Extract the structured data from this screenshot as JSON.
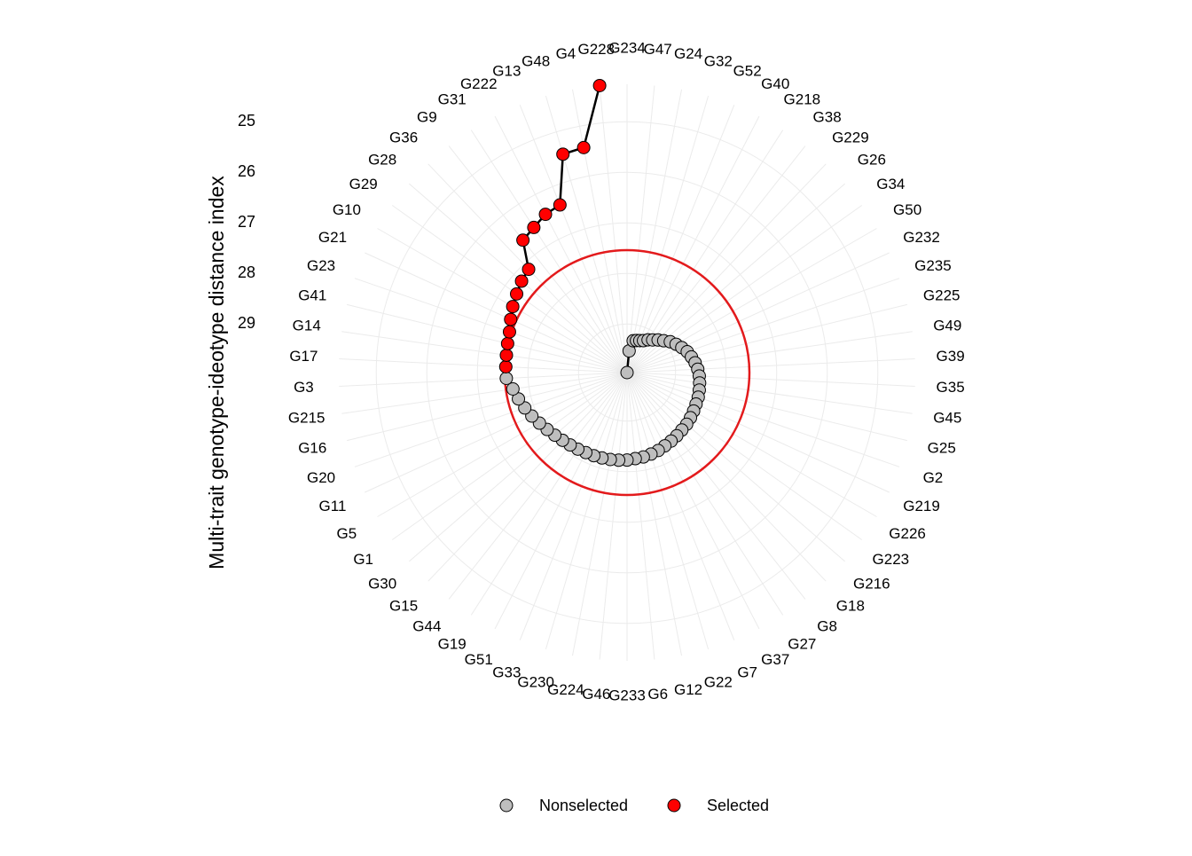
{
  "chart_data": {
    "type": "radar",
    "y_label": "Multi-trait genotype-ideotype distance index",
    "categories": [
      "G234",
      "G47",
      "G24",
      "G32",
      "G52",
      "G40",
      "G218",
      "G38",
      "G229",
      "G26",
      "G34",
      "G50",
      "G232",
      "G235",
      "G225",
      "G49",
      "G39",
      "G35",
      "G45",
      "G25",
      "G2",
      "G219",
      "G226",
      "G223",
      "G216",
      "G18",
      "G8",
      "G27",
      "G37",
      "G7",
      "G22",
      "G12",
      "G6",
      "G233",
      "G46",
      "G224",
      "G230",
      "G33",
      "G51",
      "G19",
      "G44",
      "G15",
      "G30",
      "G1",
      "G5",
      "G11",
      "G20",
      "G16",
      "G215",
      "G3",
      "G17",
      "G14",
      "G41",
      "G23",
      "G21",
      "G10",
      "G29",
      "G28",
      "G36",
      "G9",
      "G31",
      "G222",
      "G13",
      "G48",
      "G4",
      "G228"
    ],
    "series": [
      {
        "name": "Nonselected",
        "color": "#bebebe",
        "values": [
          29.96,
          29.53,
          29.32,
          29.3,
          29.28,
          29.25,
          29.19,
          29.14,
          29.07,
          29.0,
          28.91,
          28.84,
          28.77,
          28.7,
          28.65,
          28.6,
          28.56,
          28.53,
          28.51,
          28.49,
          28.47,
          28.46,
          28.44,
          28.42,
          28.4,
          28.39,
          28.37,
          28.35,
          28.33,
          28.3,
          28.28,
          28.26,
          28.25,
          28.23,
          28.22,
          28.21,
          28.2,
          28.19,
          28.18,
          28.16,
          28.14,
          28.11,
          28.07,
          28.02,
          27.96,
          27.89,
          27.82,
          27.75,
          27.68,
          27.57,
          null,
          null,
          null,
          null,
          null,
          null,
          null,
          null,
          null,
          null,
          null,
          null,
          null,
          null,
          null,
          null
        ]
      },
      {
        "name": "Selected",
        "color": "#ff0000",
        "values": [
          null,
          null,
          null,
          null,
          null,
          null,
          null,
          null,
          null,
          null,
          null,
          null,
          null,
          null,
          null,
          null,
          null,
          null,
          null,
          null,
          null,
          null,
          null,
          null,
          null,
          null,
          null,
          null,
          null,
          null,
          null,
          null,
          null,
          null,
          null,
          null,
          null,
          null,
          null,
          null,
          null,
          null,
          null,
          null,
          null,
          null,
          null,
          null,
          null,
          null,
          27.56,
          27.55,
          27.53,
          27.5,
          27.43,
          27.35,
          27.28,
          27.2,
          27.14,
          26.63,
          26.55,
          26.44,
          26.39,
          25.46,
          25.43,
          24.26
        ]
      }
    ],
    "threshold": 27.54,
    "threshold_color": "#e31a1c",
    "ylim": [
      29.96,
      24.26
    ],
    "yticks": [
      25,
      26,
      27,
      28,
      29
    ],
    "grid": true,
    "legend": "bottom"
  }
}
